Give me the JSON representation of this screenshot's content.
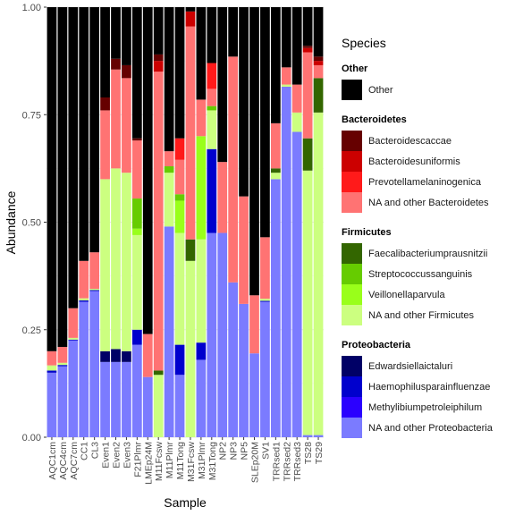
{
  "chart_data": {
    "type": "bar",
    "stacked": true,
    "xlabel": "Sample",
    "ylabel": "Abundance",
    "ylim": [
      0,
      1
    ],
    "yticks": [
      "0.00",
      "0.25",
      "0.50",
      "0.75",
      "1.00"
    ],
    "grid": true,
    "legend_position": "right",
    "categories": [
      "AQC1cm",
      "AQC4cm",
      "AQC7cm",
      "CC1",
      "CL3",
      "Even1",
      "Even2",
      "Even3",
      "F21Plmr",
      "LMEp24M",
      "M11Fcsw",
      "M11Plmr",
      "M11Tong",
      "M31Fcsw",
      "M31Plmr",
      "M31Tong",
      "NP2",
      "NP3",
      "NP5",
      "SLEp20M",
      "SV1",
      "TRRsed1",
      "TRRsed2",
      "TRRsed3",
      "TS28",
      "TS29"
    ],
    "series": [
      {
        "name": "NA and other Proteobacteria",
        "color": "#7B7BFF",
        "values": [
          0.15,
          0.165,
          0.225,
          0.315,
          0.34,
          0.175,
          0.175,
          0.175,
          0.215,
          0.14,
          0.0,
          0.49,
          0.145,
          0.0,
          0.18,
          0.475,
          0.475,
          0.36,
          0.31,
          0.195,
          0.315,
          0.6,
          0.815,
          0.71,
          0.005,
          0.005
        ]
      },
      {
        "name": "Methylibiumpetroleiphilum",
        "color": "#2B00FF",
        "values": [
          0.0,
          0.0,
          0.0,
          0.0,
          0.0,
          0.0,
          0.0,
          0.0,
          0.0,
          0.0,
          0.0,
          0.0,
          0.0,
          0.0,
          0.0,
          0.0,
          0.0,
          0.0,
          0.0,
          0.0,
          0.0,
          0.0,
          0.0,
          0.0,
          0.0,
          0.0
        ]
      },
      {
        "name": "Haemophilusparainfluenzae",
        "color": "#0000CD",
        "values": [
          0.005,
          0.003,
          0.002,
          0.003,
          0.002,
          0.0,
          0.0,
          0.0,
          0.035,
          0.0,
          0.0,
          0.0,
          0.07,
          0.0,
          0.04,
          0.195,
          0.0,
          0.0,
          0.0,
          0.0,
          0.002,
          0.0,
          0.0,
          0.0,
          0.0,
          0.0
        ]
      },
      {
        "name": "Edwardsiellaictaluri",
        "color": "#000066",
        "values": [
          0.0,
          0.0,
          0.0,
          0.0,
          0.0,
          0.025,
          0.03,
          0.025,
          0.0,
          0.0,
          0.0,
          0.0,
          0.0,
          0.0,
          0.0,
          0.0,
          0.0,
          0.0,
          0.0,
          0.0,
          0.0,
          0.0,
          0.0,
          0.0,
          0.0,
          0.0
        ]
      },
      {
        "name": "NA and other Firmicutes",
        "color": "#CCFF80",
        "values": [
          0.012,
          0.005,
          0.004,
          0.005,
          0.003,
          0.4,
          0.42,
          0.415,
          0.22,
          0.0,
          0.145,
          0.125,
          0.26,
          0.41,
          0.24,
          0.09,
          0.0,
          0.0,
          0.0,
          0.0,
          0.005,
          0.015,
          0.005,
          0.045,
          0.615,
          0.75
        ]
      },
      {
        "name": "Veillonellaparvula",
        "color": "#99FF1A",
        "values": [
          0.0,
          0.0,
          0.0,
          0.0,
          0.0,
          0.0,
          0.0,
          0.0,
          0.015,
          0.0,
          0.0,
          0.0,
          0.075,
          0.0,
          0.24,
          0.0,
          0.0,
          0.0,
          0.0,
          0.0,
          0.0,
          0.0,
          0.0,
          0.0,
          0.0,
          0.0
        ]
      },
      {
        "name": "Streptococcussanguinis",
        "color": "#66CC00",
        "values": [
          0.0,
          0.0,
          0.0,
          0.0,
          0.0,
          0.0,
          0.0,
          0.0,
          0.07,
          0.0,
          0.0,
          0.015,
          0.015,
          0.0,
          0.0,
          0.01,
          0.0,
          0.0,
          0.0,
          0.0,
          0.0,
          0.0,
          0.0,
          0.0,
          0.0,
          0.0
        ]
      },
      {
        "name": "Faecalibacteriumprausnitzii",
        "color": "#336600",
        "values": [
          0.0,
          0.0,
          0.0,
          0.0,
          0.0,
          0.0,
          0.0,
          0.0,
          0.0,
          0.0,
          0.01,
          0.0,
          0.0,
          0.05,
          0.0,
          0.0,
          0.0,
          0.0,
          0.0,
          0.0,
          0.0,
          0.01,
          0.0,
          0.0,
          0.075,
          0.08
        ]
      },
      {
        "name": "NA and other Bacteroidetes",
        "color": "#FF7373",
        "values": [
          0.033,
          0.037,
          0.069,
          0.087,
          0.085,
          0.16,
          0.23,
          0.22,
          0.135,
          0.1,
          0.695,
          0.035,
          0.08,
          0.495,
          0.085,
          0.04,
          0.165,
          0.525,
          0.25,
          0.135,
          0.143,
          0.105,
          0.04,
          0.065,
          0.2,
          0.03
        ]
      },
      {
        "name": "Prevotellamelaninogenica",
        "color": "#FF1A1A",
        "values": [
          0.0,
          0.0,
          0.0,
          0.0,
          0.0,
          0.0,
          0.0,
          0.0,
          0.0,
          0.0,
          0.0,
          0.0,
          0.05,
          0.0,
          0.0,
          0.06,
          0.0,
          0.0,
          0.0,
          0.0,
          0.0,
          0.0,
          0.0,
          0.0,
          0.0,
          0.0
        ]
      },
      {
        "name": "Bacteroidesuniformis",
        "color": "#CC0000",
        "values": [
          0.0,
          0.0,
          0.0,
          0.0,
          0.0,
          0.0,
          0.0,
          0.0,
          0.0,
          0.0,
          0.025,
          0.0,
          0.0,
          0.035,
          0.0,
          0.0,
          0.0,
          0.0,
          0.0,
          0.0,
          0.0,
          0.0,
          0.0,
          0.0,
          0.01,
          0.01
        ]
      },
      {
        "name": "Bacteroidescaccae",
        "color": "#660000",
        "values": [
          0.0,
          0.0,
          0.0,
          0.0,
          0.0,
          0.03,
          0.025,
          0.03,
          0.005,
          0.0,
          0.015,
          0.0,
          0.0,
          0.0,
          0.0,
          0.0,
          0.0,
          0.0,
          0.0,
          0.0,
          0.0,
          0.0,
          0.0,
          0.0,
          0.005,
          0.01
        ]
      },
      {
        "name": "Other",
        "color": "#000000",
        "values": [
          0.8,
          0.79,
          0.7,
          0.59,
          0.57,
          0.21,
          0.12,
          0.135,
          0.305,
          0.76,
          0.11,
          0.335,
          0.305,
          0.01,
          0.215,
          0.13,
          0.36,
          0.115,
          0.44,
          0.67,
          0.535,
          0.27,
          0.14,
          0.18,
          0.09,
          0.115
        ]
      }
    ]
  },
  "legend": {
    "title": "Species",
    "groups": [
      {
        "title": "Other",
        "items": [
          {
            "label": "Other",
            "color": "#000000"
          }
        ]
      },
      {
        "title": "Bacteroidetes",
        "items": [
          {
            "label": "Bacteroidescaccae",
            "color": "#660000"
          },
          {
            "label": "Bacteroidesuniformis",
            "color": "#CC0000"
          },
          {
            "label": "Prevotellamelaninogenica",
            "color": "#FF1A1A"
          },
          {
            "label": "NA and other Bacteroidetes",
            "color": "#FF7373"
          }
        ]
      },
      {
        "title": "Firmicutes",
        "items": [
          {
            "label": "Faecalibacteriumprausnitzii",
            "color": "#336600"
          },
          {
            "label": "Streptococcussanguinis",
            "color": "#66CC00"
          },
          {
            "label": "Veillonellaparvula",
            "color": "#99FF1A"
          },
          {
            "label": "NA and other Firmicutes",
            "color": "#CCFF80"
          }
        ]
      },
      {
        "title": "Proteobacteria",
        "items": [
          {
            "label": "Edwardsiellaictaluri",
            "color": "#000066"
          },
          {
            "label": "Haemophilusparainfluenzae",
            "color": "#0000CD"
          },
          {
            "label": "Methylibiumpetroleiphilum",
            "color": "#2B00FF"
          },
          {
            "label": "NA and other Proteobacteria",
            "color": "#7B7BFF"
          }
        ]
      }
    ]
  }
}
